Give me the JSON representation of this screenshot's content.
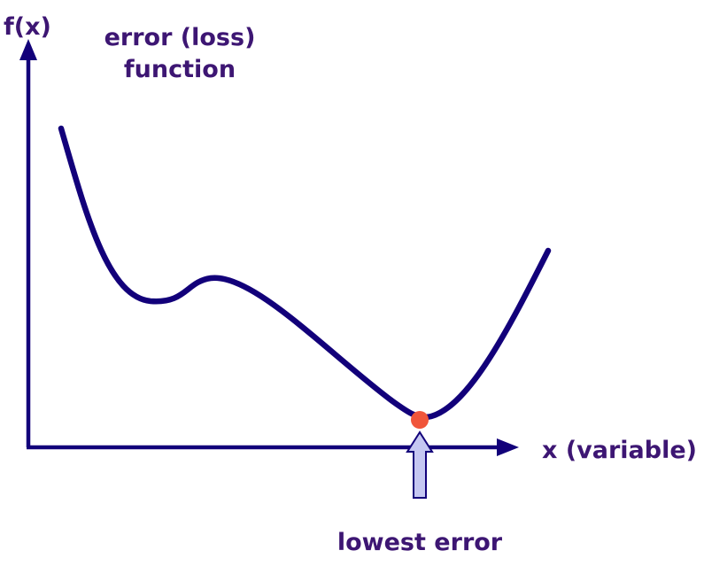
{
  "y_axis_label": "f(x)",
  "x_axis_label": "x (variable)",
  "curve_label_line1": "error (loss)",
  "curve_label_line2": "function",
  "minimum_label": "lowest error",
  "colors": {
    "text": "#3d1673",
    "curve": "#12007a",
    "axis": "#12007a",
    "marker": "#f0553a",
    "arrow_fill": "#c5c7f2",
    "arrow_stroke": "#12007a"
  }
}
